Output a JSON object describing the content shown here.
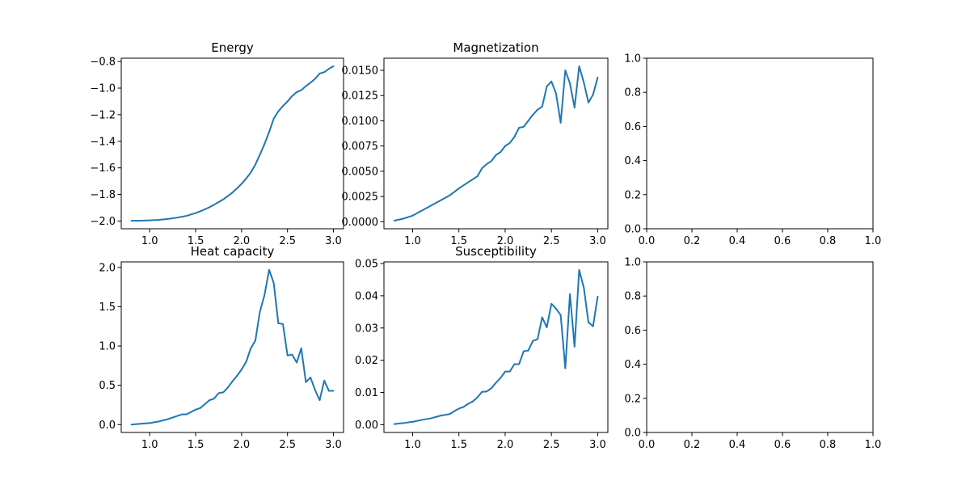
{
  "figure": {
    "background": "#ffffff",
    "line_color": "#1f77b4"
  },
  "chart_data": [
    {
      "type": "line",
      "title": "Energy",
      "xlabel": "",
      "ylabel": "",
      "xlim": [
        0.69,
        3.11
      ],
      "ylim": [
        -2.058,
        -0.775
      ],
      "xticks": [
        1.0,
        1.5,
        2.0,
        2.5,
        3.0
      ],
      "xtick_labels": [
        "1.0",
        "1.5",
        "2.0",
        "2.5",
        "3.0"
      ],
      "yticks": [
        -2.0,
        -1.8,
        -1.6,
        -1.4,
        -1.2,
        -1.0,
        -0.8
      ],
      "ytick_labels": [
        "−2.0",
        "−1.8",
        "−1.6",
        "−1.4",
        "−1.2",
        "−1.0",
        "−0.8"
      ],
      "grid": false,
      "series": [
        {
          "x": [
            0.8,
            0.9,
            1.0,
            1.1,
            1.2,
            1.3,
            1.4,
            1.5,
            1.55,
            1.6,
            1.65,
            1.7,
            1.75,
            1.8,
            1.85,
            1.9,
            1.95,
            2.0,
            2.05,
            2.1,
            2.15,
            2.2,
            2.25,
            2.3,
            2.35,
            2.4,
            2.45,
            2.5,
            2.55,
            2.6,
            2.65,
            2.7,
            2.75,
            2.8,
            2.85,
            2.9,
            2.95,
            3.0
          ],
          "y": [
            -1.998,
            -1.997,
            -1.995,
            -1.991,
            -1.984,
            -1.974,
            -1.961,
            -1.94,
            -1.927,
            -1.912,
            -1.896,
            -1.877,
            -1.858,
            -1.837,
            -1.812,
            -1.786,
            -1.754,
            -1.72,
            -1.68,
            -1.635,
            -1.575,
            -1.5,
            -1.42,
            -1.33,
            -1.23,
            -1.175,
            -1.135,
            -1.1,
            -1.06,
            -1.03,
            -1.015,
            -0.985,
            -0.96,
            -0.93,
            -0.89,
            -0.88,
            -0.855,
            -0.835
          ]
        }
      ]
    },
    {
      "type": "line",
      "title": "Magnetization",
      "xlabel": "",
      "ylabel": "",
      "xlim": [
        0.69,
        3.11
      ],
      "ylim": [
        -0.0007,
        0.0162
      ],
      "xticks": [
        1.0,
        1.5,
        2.0,
        2.5,
        3.0
      ],
      "xtick_labels": [
        "1.0",
        "1.5",
        "2.0",
        "2.5",
        "3.0"
      ],
      "yticks": [
        0.0,
        0.0025,
        0.005,
        0.0075,
        0.01,
        0.0125,
        0.015
      ],
      "ytick_labels": [
        "0.0000",
        "0.0025",
        "0.0050",
        "0.0075",
        "0.0100",
        "0.0125",
        "0.0150"
      ],
      "grid": false,
      "series": [
        {
          "x": [
            0.8,
            0.9,
            1.0,
            1.1,
            1.2,
            1.3,
            1.4,
            1.5,
            1.6,
            1.7,
            1.75,
            1.8,
            1.85,
            1.9,
            1.95,
            2.0,
            2.05,
            2.1,
            2.15,
            2.2,
            2.25,
            2.3,
            2.35,
            2.4,
            2.45,
            2.5,
            2.55,
            2.6,
            2.65,
            2.7,
            2.75,
            2.8,
            2.85,
            2.9,
            2.95,
            3.0
          ],
          "y": [
            0.0001,
            0.0003,
            0.0006,
            0.0011,
            0.0016,
            0.0021,
            0.0026,
            0.0033,
            0.0039,
            0.0045,
            0.0053,
            0.0057,
            0.006,
            0.0066,
            0.0069,
            0.0075,
            0.0078,
            0.0084,
            0.0093,
            0.0094,
            0.01,
            0.0106,
            0.0111,
            0.0114,
            0.0134,
            0.0139,
            0.0127,
            0.0098,
            0.015,
            0.0137,
            0.0113,
            0.0154,
            0.0138,
            0.0118,
            0.0126,
            0.0143
          ]
        }
      ]
    },
    {
      "type": "line",
      "title": "",
      "xlabel": "",
      "ylabel": "",
      "xlim": [
        0,
        1
      ],
      "ylim": [
        0,
        1
      ],
      "xticks": [
        0.0,
        0.2,
        0.4,
        0.6,
        0.8,
        1.0
      ],
      "xtick_labels": [
        "0.0",
        "0.2",
        "0.4",
        "0.6",
        "0.8",
        "1.0"
      ],
      "yticks": [
        0.0,
        0.2,
        0.4,
        0.6,
        0.8,
        1.0
      ],
      "ytick_labels": [
        "0.0",
        "0.2",
        "0.4",
        "0.6",
        "0.8",
        "1.0"
      ],
      "grid": false,
      "series": []
    },
    {
      "type": "line",
      "title": "Heat capacity",
      "xlabel": "",
      "ylabel": "",
      "xlim": [
        0.69,
        3.11
      ],
      "ylim": [
        -0.1,
        2.07
      ],
      "xticks": [
        1.0,
        1.5,
        2.0,
        2.5,
        3.0
      ],
      "xtick_labels": [
        "1.0",
        "1.5",
        "2.0",
        "2.5",
        "3.0"
      ],
      "yticks": [
        0.0,
        0.5,
        1.0,
        1.5,
        2.0
      ],
      "ytick_labels": [
        "0.0",
        "0.5",
        "1.0",
        "1.5",
        "2.0"
      ],
      "grid": false,
      "series": [
        {
          "x": [
            0.8,
            0.9,
            1.0,
            1.1,
            1.2,
            1.3,
            1.35,
            1.4,
            1.5,
            1.55,
            1.6,
            1.65,
            1.7,
            1.75,
            1.8,
            1.85,
            1.9,
            1.95,
            2.0,
            2.05,
            2.1,
            2.15,
            2.2,
            2.25,
            2.3,
            2.35,
            2.4,
            2.45,
            2.5,
            2.55,
            2.6,
            2.65,
            2.7,
            2.75,
            2.8,
            2.85,
            2.9,
            2.95,
            3.0
          ],
          "y": [
            0.0,
            0.01,
            0.02,
            0.04,
            0.07,
            0.11,
            0.13,
            0.13,
            0.19,
            0.21,
            0.26,
            0.31,
            0.33,
            0.4,
            0.41,
            0.47,
            0.55,
            0.62,
            0.7,
            0.8,
            0.97,
            1.07,
            1.44,
            1.65,
            1.97,
            1.8,
            1.29,
            1.28,
            0.88,
            0.89,
            0.79,
            0.97,
            0.54,
            0.6,
            0.44,
            0.31,
            0.56,
            0.43,
            0.43
          ]
        }
      ]
    },
    {
      "type": "line",
      "title": "Susceptibility",
      "xlabel": "",
      "ylabel": "",
      "xlim": [
        0.69,
        3.11
      ],
      "ylim": [
        -0.0024,
        0.0505
      ],
      "xticks": [
        1.0,
        1.5,
        2.0,
        2.5,
        3.0
      ],
      "xtick_labels": [
        "1.0",
        "1.5",
        "2.0",
        "2.5",
        "3.0"
      ],
      "yticks": [
        0.0,
        0.01,
        0.02,
        0.03,
        0.04,
        0.05
      ],
      "ytick_labels": [
        "0.00",
        "0.01",
        "0.02",
        "0.03",
        "0.04",
        "0.05"
      ],
      "grid": false,
      "series": [
        {
          "x": [
            0.8,
            0.9,
            1.0,
            1.1,
            1.2,
            1.3,
            1.4,
            1.45,
            1.5,
            1.55,
            1.6,
            1.65,
            1.7,
            1.75,
            1.8,
            1.85,
            1.9,
            1.95,
            2.0,
            2.05,
            2.1,
            2.15,
            2.2,
            2.25,
            2.3,
            2.35,
            2.4,
            2.45,
            2.5,
            2.55,
            2.6,
            2.65,
            2.7,
            2.75,
            2.8,
            2.85,
            2.9,
            2.95,
            3.0
          ],
          "y": [
            0.0002,
            0.0005,
            0.0009,
            0.0015,
            0.002,
            0.0028,
            0.0033,
            0.0042,
            0.005,
            0.0055,
            0.0065,
            0.0072,
            0.0085,
            0.0102,
            0.0103,
            0.0113,
            0.013,
            0.0145,
            0.0165,
            0.0165,
            0.0188,
            0.0188,
            0.0228,
            0.023,
            0.026,
            0.0265,
            0.0333,
            0.0302,
            0.0375,
            0.036,
            0.034,
            0.0175,
            0.0405,
            0.0242,
            0.048,
            0.0425,
            0.0318,
            0.0305,
            0.0398
          ]
        }
      ]
    },
    {
      "type": "line",
      "title": "",
      "xlabel": "",
      "ylabel": "",
      "xlim": [
        0,
        1
      ],
      "ylim": [
        0,
        1
      ],
      "xticks": [
        0.0,
        0.2,
        0.4,
        0.6,
        0.8,
        1.0
      ],
      "xtick_labels": [
        "0.0",
        "0.2",
        "0.4",
        "0.6",
        "0.8",
        "1.0"
      ],
      "yticks": [
        0.0,
        0.2,
        0.4,
        0.6,
        0.8,
        1.0
      ],
      "ytick_labels": [
        "0.0",
        "0.2",
        "0.4",
        "0.6",
        "0.8",
        "1.0"
      ],
      "grid": false,
      "series": []
    }
  ]
}
